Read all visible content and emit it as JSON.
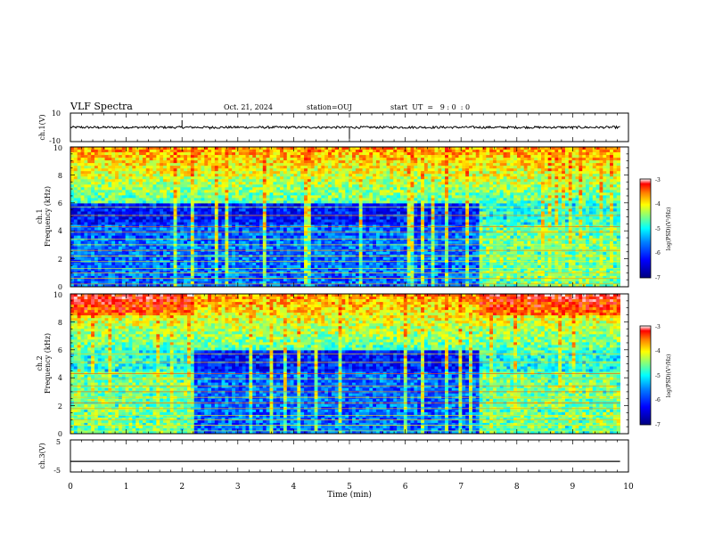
{
  "header": {
    "title": "VLF Spectra",
    "date": "Oct. 21, 2024",
    "station": "station=OUJ",
    "start": "start  UT  =   9 : 0  : 0"
  },
  "colors": {
    "spectrum_scale": [
      "#00007f",
      "#0000ff",
      "#0080ff",
      "#00ffff",
      "#80ff80",
      "#ffff00",
      "#ff8000",
      "#ff0000",
      "#ffffff"
    ]
  },
  "chart_data": [
    {
      "id": "ch1-waveform",
      "type": "line",
      "ylabel": "ch.1(V)",
      "ylim": [
        -10,
        10
      ],
      "y_ticks": [
        "10",
        "-10"
      ],
      "xlim": [
        0,
        10
      ],
      "baseline": 0,
      "x": [
        0,
        0.2,
        0.5,
        1.0,
        1.5,
        2.0,
        2.5,
        3.0,
        3.5,
        4.0,
        4.5,
        5.0,
        5.5,
        6.0,
        6.5,
        7.0,
        7.5,
        8.0,
        8.5,
        9.0,
        9.5,
        9.85
      ],
      "values": [
        0,
        1,
        -1,
        0.5,
        -1.5,
        5,
        -1.5,
        1,
        -0.5,
        0.5,
        -1,
        -8,
        0.5,
        -0.5,
        1,
        -0.5,
        0.5,
        -1,
        0.5,
        -1.5,
        0.5,
        0
      ]
    },
    {
      "id": "ch1-spectrogram",
      "type": "heatmap",
      "ylabel": "ch.1\nFrequency (kHz)",
      "ylim": [
        0,
        10
      ],
      "y_ticks": [
        "0",
        "2",
        "4",
        "6",
        "8",
        "10"
      ],
      "xlim": [
        0,
        10
      ],
      "colorbar": {
        "label": "log(PSD)(V²/Hz)",
        "range": [
          -7,
          -3
        ],
        "ticks": [
          "-3",
          "-4",
          "-5",
          "-6",
          "-7"
        ]
      }
    },
    {
      "id": "ch2-spectrogram",
      "type": "heatmap",
      "ylabel": "ch.2\nFrequency (kHz)",
      "ylim": [
        0,
        10
      ],
      "y_ticks": [
        "0",
        "2",
        "4",
        "6",
        "8",
        "10"
      ],
      "xlim": [
        0,
        10
      ],
      "colorbar": {
        "label": "log(PSD)(V²/Hz)",
        "range": [
          -7,
          -3
        ],
        "ticks": [
          "-3",
          "-4",
          "-5",
          "-6",
          "-7"
        ]
      }
    },
    {
      "id": "ch3-waveform",
      "type": "line",
      "ylabel": "ch.3(V)",
      "ylim": [
        -5,
        5
      ],
      "y_ticks": [
        "5",
        "-5"
      ],
      "xlim": [
        0,
        10
      ],
      "x": [
        0,
        9.85
      ],
      "values": [
        -1.7,
        -1.7
      ]
    }
  ],
  "x_axis": {
    "label": "Time (min)",
    "ticks": [
      "0",
      "1",
      "2",
      "3",
      "4",
      "5",
      "6",
      "7",
      "8",
      "9",
      "10"
    ]
  },
  "spectrogram_labels": {
    "ch1_label_a": "ch.1",
    "ch1_label_b": "Frequency (kHz)",
    "ch2_label_a": "ch.2",
    "ch2_label_b": "Frequency (kHz)",
    "colorbar_label": "log(PSD)(V²/Hz)"
  }
}
